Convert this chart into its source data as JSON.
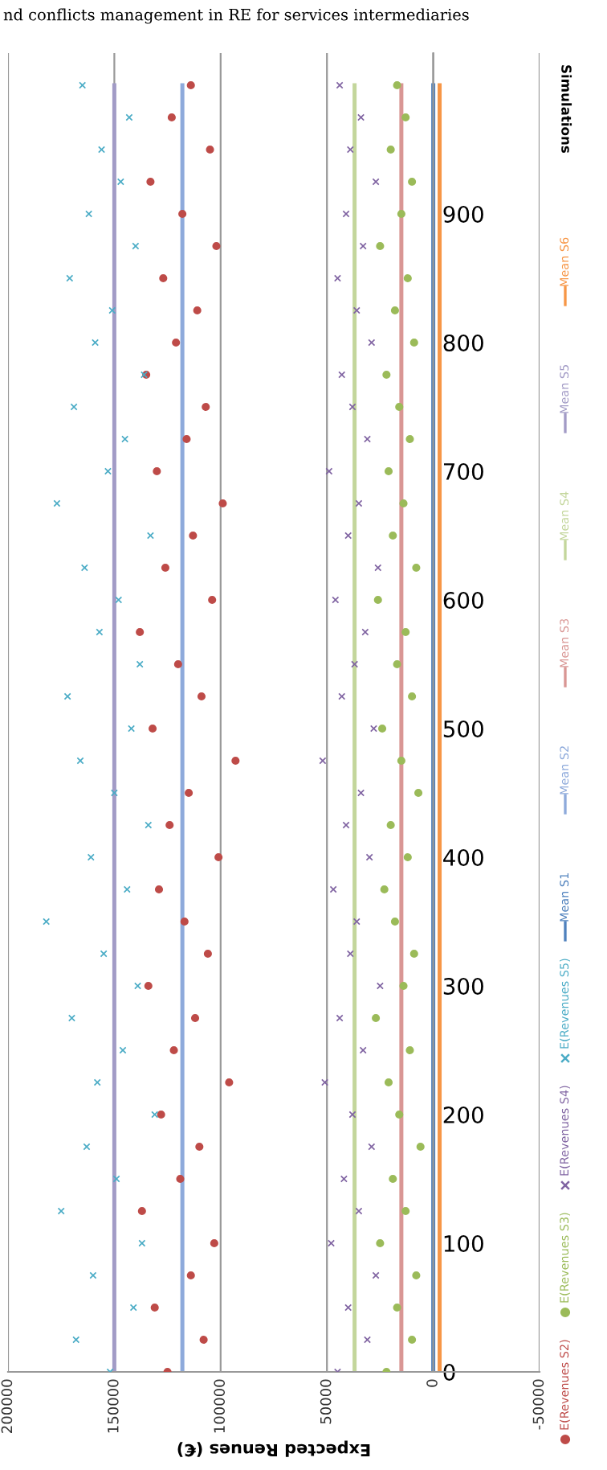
{
  "chart_data": {
    "type": "scatter",
    "orientation": "horizontal",
    "xlabel": "Expected Renues (€)",
    "ylabel": "Simulations",
    "annotations": [
      "nd conflicts management in RE for services intermediaries"
    ],
    "xlim": [
      200000,
      -50000
    ],
    "xticks": [
      200000,
      150000,
      100000,
      50000,
      0,
      -50000
    ],
    "ylim": [
      0,
      1025
    ],
    "yticks": [
      0,
      100,
      200,
      300,
      400,
      500,
      600,
      700,
      800,
      900
    ],
    "x": [
      0,
      25,
      50,
      75,
      100,
      125,
      150,
      175,
      200,
      225,
      250,
      275,
      300,
      325,
      350,
      375,
      400,
      425,
      450,
      475,
      500,
      525,
      550,
      575,
      600,
      625,
      650,
      675,
      700,
      725,
      750,
      775,
      800,
      825,
      850,
      875,
      900,
      925,
      950,
      975,
      1000
    ],
    "grid": "x",
    "legend": "right",
    "series": [
      {
        "name": "E(Revenues S2)",
        "color": "#be4b48",
        "marker": "circle",
        "values": [
          125000,
          108000,
          131000,
          114000,
          103000,
          137000,
          119000,
          110000,
          128000,
          96000,
          122000,
          112000,
          134000,
          106000,
          117000,
          129000,
          101000,
          124000,
          115000,
          93000,
          132000,
          109000,
          120000,
          138000,
          104000,
          126000,
          113000,
          99000,
          130000,
          116000,
          107000,
          135000,
          121000,
          111000,
          127000,
          102000,
          118000,
          133000,
          105000,
          123000,
          114000
        ]
      },
      {
        "name": "E(Revenues S3)",
        "color": "#9bbb59",
        "marker": "circle",
        "values": [
          22000,
          10000,
          17000,
          8000,
          25000,
          13000,
          19000,
          6000,
          16000,
          21000,
          11000,
          27000,
          14000,
          9000,
          18000,
          23000,
          12000,
          20000,
          7000,
          15000,
          24000,
          10000,
          17000,
          13000,
          26000,
          8000,
          19000,
          14000,
          21000,
          11000,
          16000,
          22000,
          9000,
          18000,
          12000,
          25000,
          15000,
          10000,
          20000,
          13000,
          17000
        ]
      },
      {
        "name": "E(Revenues S4)",
        "color": "#8064a2",
        "marker": "cross",
        "values": [
          45000,
          31000,
          40000,
          27000,
          48000,
          35000,
          42000,
          29000,
          38000,
          51000,
          33000,
          44000,
          25000,
          39000,
          36000,
          47000,
          30000,
          41000,
          34000,
          52000,
          28000,
          43000,
          37000,
          32000,
          46000,
          26000,
          40000,
          35000,
          49000,
          31000,
          38000,
          43000,
          29000,
          36000,
          45000,
          33000,
          41000,
          27000,
          39000,
          34000,
          44000
        ]
      },
      {
        "name": "E(Revenues S5)",
        "color": "#4bacc6",
        "marker": "cross",
        "values": [
          152000,
          168000,
          141000,
          160000,
          137000,
          175000,
          149000,
          163000,
          131000,
          158000,
          146000,
          170000,
          139000,
          155000,
          182000,
          144000,
          161000,
          134000,
          150000,
          166000,
          142000,
          172000,
          138000,
          157000,
          148000,
          164000,
          133000,
          177000,
          153000,
          145000,
          169000,
          136000,
          159000,
          151000,
          171000,
          140000,
          162000,
          147000,
          156000,
          143000,
          165000
        ]
      },
      {
        "name": "Mean S1",
        "type": "line",
        "color": "#4f81bd",
        "marker": "none",
        "line_style": "solid",
        "values": [
          0,
          0,
          0,
          0,
          0,
          0,
          0,
          0,
          0,
          0,
          0,
          0,
          0,
          0,
          0,
          0,
          0,
          0,
          0,
          0,
          0,
          0,
          0,
          0,
          0,
          0,
          0,
          0,
          0,
          0,
          0,
          0,
          0,
          0,
          0,
          0,
          0,
          0,
          0,
          0,
          0
        ]
      },
      {
        "name": "Mean S2",
        "type": "line",
        "color": "#8eaadb",
        "marker": "none",
        "line_style": "solid",
        "values": [
          118000,
          118000,
          118000,
          118000,
          118000,
          118000,
          118000,
          118000,
          118000,
          118000,
          118000,
          118000,
          118000,
          118000,
          118000,
          118000,
          118000,
          118000,
          118000,
          118000,
          118000,
          118000,
          118000,
          118000,
          118000,
          118000,
          118000,
          118000,
          118000,
          118000,
          118000,
          118000,
          118000,
          118000,
          118000,
          118000,
          118000,
          118000,
          118000,
          118000,
          118000
        ]
      },
      {
        "name": "Mean S3",
        "type": "line",
        "color": "#d99694",
        "marker": "none",
        "line_style": "solid",
        "values": [
          15000,
          15000,
          15000,
          15000,
          15000,
          15000,
          15000,
          15000,
          15000,
          15000,
          15000,
          15000,
          15000,
          15000,
          15000,
          15000,
          15000,
          15000,
          15000,
          15000,
          15000,
          15000,
          15000,
          15000,
          15000,
          15000,
          15000,
          15000,
          15000,
          15000,
          15000,
          15000,
          15000,
          15000,
          15000,
          15000,
          15000,
          15000,
          15000,
          15000,
          15000
        ]
      },
      {
        "name": "Mean S4",
        "type": "line",
        "color": "#c3d69b",
        "marker": "none",
        "line_style": "solid",
        "values": [
          37000,
          37000,
          37000,
          37000,
          37000,
          37000,
          37000,
          37000,
          37000,
          37000,
          37000,
          37000,
          37000,
          37000,
          37000,
          37000,
          37000,
          37000,
          37000,
          37000,
          37000,
          37000,
          37000,
          37000,
          37000,
          37000,
          37000,
          37000,
          37000,
          37000,
          37000,
          37000,
          37000,
          37000,
          37000,
          37000,
          37000,
          37000,
          37000,
          37000,
          37000
        ]
      },
      {
        "name": "Mean S5",
        "type": "line",
        "color": "#a29bc6",
        "marker": "none",
        "line_style": "solid",
        "values": [
          150000,
          150000,
          150000,
          150000,
          150000,
          150000,
          150000,
          150000,
          150000,
          150000,
          150000,
          150000,
          150000,
          150000,
          150000,
          150000,
          150000,
          150000,
          150000,
          150000,
          150000,
          150000,
          150000,
          150000,
          150000,
          150000,
          150000,
          150000,
          150000,
          150000,
          150000,
          150000,
          150000,
          150000,
          150000,
          150000,
          150000,
          150000,
          150000,
          150000,
          150000
        ]
      },
      {
        "name": "Mean S6",
        "type": "line",
        "color": "#f79646",
        "marker": "none",
        "line_style": "solid",
        "values": [
          -3000,
          -3000,
          -3000,
          -3000,
          -3000,
          -3000,
          -3000,
          -3000,
          -3000,
          -3000,
          -3000,
          -3000,
          -3000,
          -3000,
          -3000,
          -3000,
          -3000,
          -3000,
          -3000,
          -3000,
          -3000,
          -3000,
          -3000,
          -3000,
          -3000,
          -3000,
          -3000,
          -3000,
          -3000,
          -3000,
          -3000,
          -3000,
          -3000,
          -3000,
          -3000,
          -3000,
          -3000,
          -3000,
          -3000,
          -3000,
          -3000
        ]
      }
    ]
  }
}
